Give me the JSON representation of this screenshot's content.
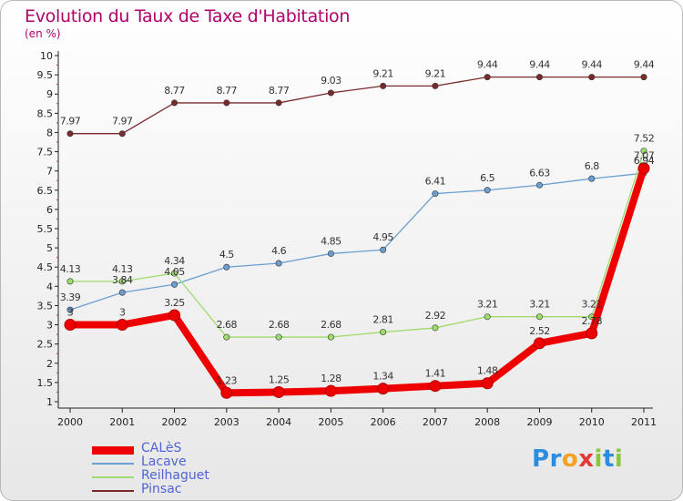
{
  "title": "Evolution du Taux de Taxe d'Habitation",
  "unit": "(en %)",
  "chart_data": {
    "type": "line",
    "x": [
      "2000",
      "2001",
      "2002",
      "2003",
      "2004",
      "2005",
      "2006",
      "2007",
      "2008",
      "2009",
      "2010",
      "2011"
    ],
    "ylim": [
      1,
      10
    ],
    "yticks": [
      "1",
      "1.5",
      "2",
      "2.5",
      "3",
      "3.5",
      "4",
      "4.5",
      "5",
      "5.5",
      "6",
      "6.5",
      "7",
      "7.5",
      "8",
      "8.5",
      "9",
      "9.5",
      "10"
    ],
    "grid": false,
    "series": [
      {
        "name": "CALèS",
        "color": "#ee0000",
        "values": [
          3,
          3,
          3.25,
          1.23,
          1.25,
          1.28,
          1.34,
          1.41,
          1.48,
          2.52,
          2.78,
          7.07
        ],
        "labels": [
          "3",
          "3",
          "3.25",
          "1.23",
          "1.25",
          "1.28",
          "1.34",
          "1.41",
          "1.48",
          "2.52",
          "2.78",
          "7.07"
        ]
      },
      {
        "name": "Lacave",
        "color": "#6a9fd1",
        "values": [
          3.39,
          3.84,
          4.05,
          4.5,
          4.6,
          4.85,
          4.95,
          6.41,
          6.5,
          6.63,
          6.8,
          6.94
        ],
        "labels": [
          "3.39",
          "3.84",
          "4.05",
          "4.5",
          "4.6",
          "4.85",
          "4.95",
          "6.41",
          "6.5",
          "6.63",
          "6.8",
          "6.94"
        ]
      },
      {
        "name": "Reilhaguet",
        "color": "#9ddc6a",
        "values": [
          4.13,
          4.13,
          4.34,
          2.68,
          2.68,
          2.68,
          2.81,
          2.92,
          3.21,
          3.21,
          3.21,
          7.52
        ],
        "labels": [
          "4.13",
          "4.13",
          "4.34",
          "2.68",
          "2.68",
          "2.68",
          "2.81",
          "2.92",
          "3.21",
          "3.21",
          "3.21",
          "7.52"
        ]
      },
      {
        "name": "Pinsac",
        "color": "#7a2a2a",
        "values": [
          7.97,
          7.97,
          8.77,
          8.77,
          8.77,
          9.03,
          9.21,
          9.21,
          9.44,
          9.44,
          9.44,
          9.44
        ],
        "labels": [
          "7.97",
          "7.97",
          "8.77",
          "8.77",
          "8.77",
          "9.03",
          "9.21",
          "9.21",
          "9.44",
          "9.44",
          "9.44",
          "9.44"
        ]
      }
    ],
    "legend_position": "bottom-left"
  },
  "logo": {
    "letters": [
      "P",
      "r",
      "o",
      "x",
      "i",
      "t",
      "i"
    ],
    "colors": [
      "#2a8de0",
      "#2a8de0",
      "#f4a020",
      "#e5373a",
      "#8cc63f",
      "#2a8de0",
      "#8cc63f"
    ]
  }
}
